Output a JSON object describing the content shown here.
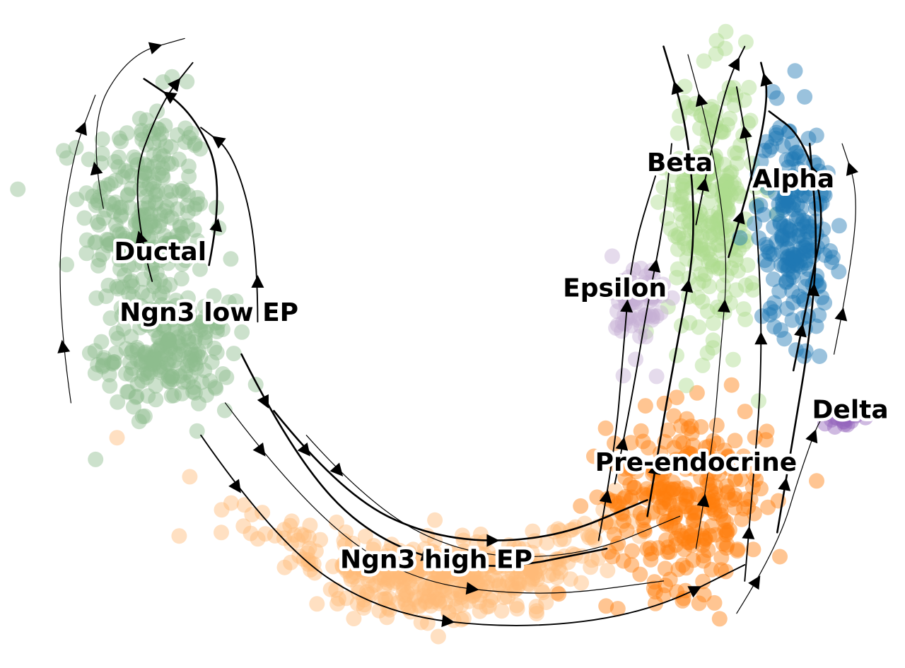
{
  "chart_data": {
    "type": "scatter",
    "subtype": "umap-velocity-stream",
    "title": "",
    "xlabel": "",
    "ylabel": "",
    "axes_visible": false,
    "grid": false,
    "legend": "on data",
    "clusters": [
      {
        "name": "Ductal",
        "color": "#8fbc8f",
        "centroid": [
          -3.4,
          1.1
        ],
        "spread": [
          0.7,
          1.3
        ]
      },
      {
        "name": "Ngn3 low EP",
        "color": "#8fbc8f",
        "centroid": [
          -3.1,
          -0.6
        ],
        "spread": [
          0.7,
          0.6
        ]
      },
      {
        "name": "Ngn3 high EP",
        "color": "#ffbb78",
        "centroid": [
          0.3,
          -3.4
        ],
        "spread": [
          1.9,
          0.6
        ]
      },
      {
        "name": "Pre-endocrine",
        "color": "#ff7f0e",
        "centroid": [
          3.3,
          -2.4
        ],
        "spread": [
          0.9,
          1.0
        ]
      },
      {
        "name": "Beta",
        "color": "#aedc8f",
        "centroid": [
          3.6,
          1.2
        ],
        "spread": [
          0.5,
          1.5
        ]
      },
      {
        "name": "Alpha",
        "color": "#1f77b4",
        "centroid": [
          4.6,
          1.0
        ],
        "spread": [
          0.4,
          1.2
        ]
      },
      {
        "name": "Epsilon",
        "color": "#c5b0d5",
        "centroid": [
          2.7,
          0.0
        ],
        "spread": [
          0.3,
          0.6
        ]
      },
      {
        "name": "Delta",
        "color": "#9467bd",
        "centroid": [
          5.2,
          -1.4
        ],
        "spread": [
          0.2,
          0.1
        ]
      }
    ],
    "labels": [
      {
        "text": "Ductal",
        "x": -3.2,
        "y": 0.65
      },
      {
        "text": "Ngn3 low EP",
        "x": -2.6,
        "y": -0.1
      },
      {
        "text": "Ngn3 high EP",
        "x": 0.2,
        "y": -3.15
      },
      {
        "text": "Pre-endocrine",
        "x": 3.4,
        "y": -1.95
      },
      {
        "text": "Beta",
        "x": 3.2,
        "y": 1.75
      },
      {
        "text": "Alpha",
        "x": 4.6,
        "y": 1.55
      },
      {
        "text": "Epsilon",
        "x": 2.4,
        "y": 0.2
      },
      {
        "text": "Delta",
        "x": 5.3,
        "y": -1.3
      }
    ]
  }
}
